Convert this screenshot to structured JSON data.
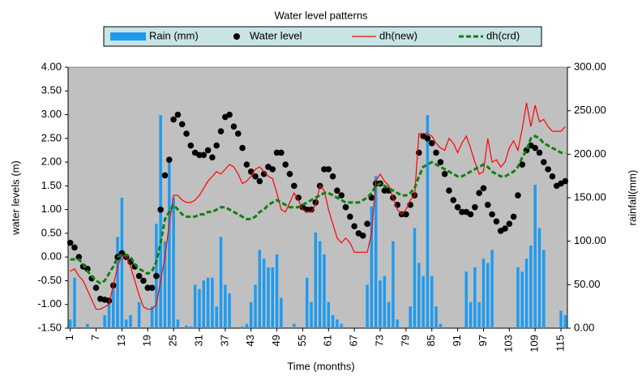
{
  "chart_data": {
    "type": "combo",
    "title": "Water level patterns",
    "x_label": "Time (months)",
    "y_label": "water levels (m)",
    "y2_label": "rainfall(mm)",
    "categories": [
      "1",
      null,
      null,
      null,
      null,
      null,
      "7",
      null,
      null,
      null,
      null,
      null,
      "13",
      null,
      null,
      null,
      null,
      null,
      "19",
      null,
      null,
      null,
      null,
      null,
      "25",
      null,
      null,
      null,
      null,
      null,
      "31",
      null,
      null,
      null,
      null,
      null,
      "37",
      null,
      null,
      null,
      null,
      null,
      "43",
      null,
      null,
      null,
      null,
      null,
      "49",
      null,
      null,
      null,
      null,
      null,
      "55",
      null,
      null,
      null,
      null,
      null,
      "61",
      null,
      null,
      null,
      null,
      null,
      "67",
      null,
      null,
      null,
      null,
      null,
      "73",
      null,
      null,
      null,
      null,
      null,
      "79",
      null,
      null,
      null,
      null,
      null,
      "85",
      null,
      null,
      null,
      null,
      null,
      "91",
      null,
      null,
      null,
      null,
      null,
      "97",
      null,
      null,
      null,
      null,
      null,
      "103",
      null,
      null,
      null,
      null,
      null,
      "109",
      null,
      null,
      null,
      null,
      null,
      "115",
      null
    ],
    "ylim": [
      -1.5,
      4
    ],
    "yticks": [
      {
        "value": -1.5,
        "label": "-1.50"
      },
      {
        "value": -1,
        "label": "-1.00"
      },
      {
        "value": -0.5,
        "label": "-0.50"
      },
      {
        "value": 0,
        "label": "0.00"
      },
      {
        "value": 0.5,
        "label": "0.50"
      },
      {
        "value": 1,
        "label": "1.00"
      },
      {
        "value": 1.5,
        "label": "1.50"
      },
      {
        "value": 2,
        "label": "2.00"
      },
      {
        "value": 2.5,
        "label": "2.50"
      },
      {
        "value": 3,
        "label": "3.00"
      },
      {
        "value": 3.5,
        "label": "3.50"
      },
      {
        "value": 4,
        "label": "4.00"
      }
    ],
    "y2lim": [
      0,
      300
    ],
    "y2ticks": [
      {
        "value": 0,
        "label": "0.00"
      },
      {
        "value": 50,
        "label": "50.00"
      },
      {
        "value": 100,
        "label": "100.00"
      },
      {
        "value": 150,
        "label": "150.00"
      },
      {
        "value": 200,
        "label": "200.00"
      },
      {
        "value": 250,
        "label": "250.00"
      },
      {
        "value": 300,
        "label": "300.00"
      }
    ],
    "series": [
      {
        "name": "Rain (mm)",
        "type": "bar",
        "axis": "y2",
        "color": "#1e9bf0",
        "values": [
          10,
          58,
          0,
          0,
          5,
          0,
          0,
          0,
          15,
          30,
          45,
          105,
          150,
          10,
          15,
          0,
          30,
          0,
          0,
          25,
          120,
          245,
          100,
          190,
          150,
          10,
          0,
          3,
          2,
          50,
          45,
          55,
          58,
          58,
          25,
          105,
          50,
          40,
          0,
          0,
          2,
          5,
          30,
          50,
          90,
          80,
          70,
          70,
          85,
          35,
          0,
          0,
          5,
          0,
          0,
          58,
          30,
          110,
          100,
          85,
          30,
          15,
          10,
          5,
          0,
          0,
          0,
          0,
          0,
          50,
          140,
          175,
          55,
          60,
          30,
          100,
          10,
          0,
          0,
          25,
          115,
          75,
          60,
          245,
          60,
          25,
          5,
          0,
          0,
          0,
          0,
          0,
          65,
          30,
          70,
          30,
          80,
          75,
          90,
          0,
          0,
          0,
          0,
          0,
          70,
          65,
          80,
          95,
          165,
          115,
          90,
          0,
          0,
          0,
          20,
          15
        ]
      },
      {
        "name": "Water level",
        "type": "scatter",
        "color": "#000000",
        "values": [
          0.3,
          0.2,
          0.0,
          -0.2,
          -0.25,
          -0.45,
          -0.65,
          -0.88,
          -0.9,
          -0.92,
          -0.6,
          0.0,
          0.08,
          0.0,
          -0.1,
          -0.2,
          -0.4,
          -0.5,
          -0.65,
          -0.65,
          -0.4,
          1.0,
          1.72,
          2.05,
          2.9,
          3.0,
          2.8,
          2.6,
          2.35,
          2.2,
          2.15,
          2.15,
          2.25,
          2.1,
          2.35,
          2.65,
          2.95,
          3.0,
          2.75,
          2.6,
          2.3,
          1.95,
          1.8,
          1.7,
          1.6,
          1.75,
          1.9,
          1.85,
          2.2,
          2.2,
          1.95,
          1.75,
          1.5,
          1.25,
          1.05,
          1.0,
          1.0,
          1.15,
          1.5,
          1.85,
          1.85,
          1.7,
          1.4,
          1.3,
          1.05,
          0.85,
          0.65,
          0.5,
          0.45,
          0.7,
          1.25,
          1.55,
          1.55,
          1.4,
          1.4,
          1.25,
          1.1,
          0.9,
          0.9,
          1.1,
          1.3,
          2.2,
          2.55,
          2.5,
          2.4,
          2.2,
          2.0,
          1.75,
          1.4,
          1.2,
          1.05,
          0.95,
          0.95,
          0.9,
          1.05,
          1.35,
          1.45,
          1.1,
          0.9,
          0.75,
          0.55,
          0.6,
          0.7,
          0.85,
          1.3,
          1.95,
          2.25,
          2.35,
          2.3,
          2.2,
          2.0,
          1.85,
          1.7,
          1.5,
          1.55,
          1.6
        ]
      },
      {
        "name": "dh(new)",
        "type": "line",
        "color": "#ff0000",
        "values": [
          -0.3,
          -0.25,
          -0.4,
          -0.5,
          -0.7,
          -0.9,
          -1.1,
          -1.1,
          -1.05,
          -1.0,
          -0.6,
          -0.2,
          0.05,
          0.0,
          -0.2,
          -0.5,
          -0.8,
          -1.05,
          -1.1,
          -1.1,
          -1.0,
          -0.5,
          0.0,
          0.7,
          1.3,
          1.3,
          1.2,
          1.15,
          1.15,
          1.2,
          1.3,
          1.45,
          1.6,
          1.7,
          1.8,
          1.75,
          1.85,
          1.95,
          1.9,
          1.75,
          1.55,
          1.6,
          1.7,
          1.85,
          1.9,
          1.8,
          1.7,
          1.65,
          1.35,
          1.0,
          0.95,
          1.15,
          1.35,
          1.2,
          1.0,
          0.95,
          0.95,
          1.1,
          1.5,
          1.4,
          1.0,
          0.7,
          0.4,
          0.3,
          0.4,
          0.3,
          0.1,
          0.1,
          0.1,
          0.1,
          0.5,
          1.6,
          1.75,
          1.6,
          1.5,
          1.25,
          1.0,
          0.9,
          1.0,
          1.2,
          1.3,
          2.6,
          2.6,
          2.6,
          2.55,
          2.4,
          2.3,
          2.25,
          2.5,
          2.4,
          2.2,
          2.4,
          2.55,
          2.3,
          2.0,
          1.75,
          1.8,
          2.5,
          2.0,
          2.05,
          1.9,
          2.0,
          2.3,
          2.45,
          2.25,
          2.7,
          3.25,
          2.75,
          3.2,
          2.85,
          2.9,
          2.75,
          2.65,
          2.65,
          2.65,
          2.75
        ]
      },
      {
        "name": "dh(crd)",
        "type": "line",
        "dashed": true,
        "color": "#108010",
        "values": [
          -0.05,
          -0.05,
          -0.05,
          -0.15,
          -0.3,
          -0.4,
          -0.5,
          -0.55,
          -0.5,
          -0.35,
          -0.2,
          0.0,
          0.05,
          0.05,
          0.0,
          -0.15,
          -0.25,
          -0.3,
          -0.35,
          -0.3,
          -0.1,
          0.3,
          0.8,
          0.95,
          1.1,
          1.0,
          0.9,
          0.85,
          0.85,
          0.85,
          0.9,
          0.9,
          0.95,
          0.95,
          1.0,
          1.05,
          1.05,
          1.0,
          0.95,
          0.9,
          0.85,
          0.8,
          0.8,
          0.85,
          0.95,
          1.0,
          1.1,
          1.15,
          1.2,
          1.15,
          1.1,
          1.05,
          1.05,
          1.05,
          1.1,
          1.15,
          1.2,
          1.25,
          1.3,
          1.35,
          1.35,
          1.3,
          1.25,
          1.2,
          1.15,
          1.15,
          1.15,
          1.15,
          1.2,
          1.25,
          1.35,
          1.5,
          1.55,
          1.5,
          1.45,
          1.4,
          1.35,
          1.3,
          1.3,
          1.35,
          1.45,
          1.7,
          1.9,
          1.95,
          2.0,
          1.95,
          1.9,
          1.85,
          1.8,
          1.75,
          1.7,
          1.7,
          1.75,
          1.8,
          1.85,
          1.9,
          1.95,
          1.9,
          1.8,
          1.75,
          1.7,
          1.7,
          1.75,
          1.8,
          1.9,
          2.1,
          2.25,
          2.5,
          2.55,
          2.5,
          2.4,
          2.35,
          2.3,
          2.25,
          2.2,
          2.2
        ]
      }
    ]
  }
}
